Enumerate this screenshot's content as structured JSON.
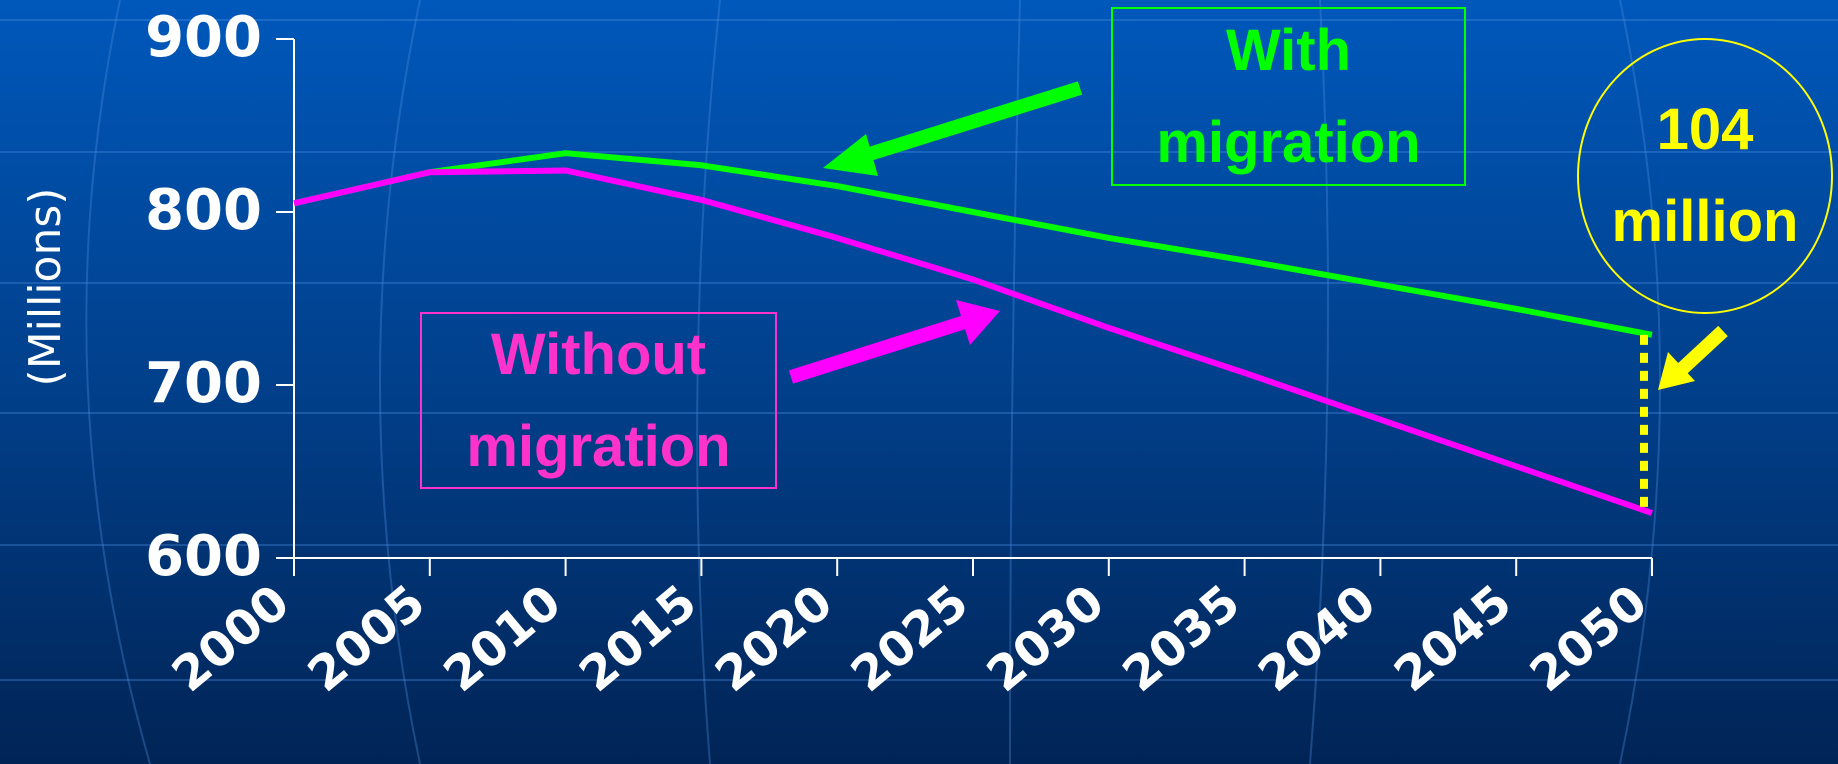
{
  "chart_data": {
    "type": "line",
    "y_label": "(Millions)",
    "x": [
      2000,
      2005,
      2010,
      2015,
      2020,
      2025,
      2030,
      2035,
      2040,
      2045,
      2050
    ],
    "series": [
      {
        "name": "With migration",
        "color": "#00ff00",
        "values": [
          805,
          823,
          834,
          827,
          815,
          800,
          785,
          772,
          758,
          744,
          729
        ]
      },
      {
        "name": "Without migration",
        "color": "#ff33cc",
        "line_color": "#ff00ff",
        "values": [
          805,
          823,
          824,
          807,
          785,
          761,
          733,
          707,
          680,
          653,
          626
        ]
      }
    ],
    "annotation": "104 million",
    "annotation_color": "#ffff00",
    "xlim": [
      2000,
      2050
    ],
    "xticks": [
      2000,
      2005,
      2010,
      2015,
      2020,
      2025,
      2030,
      2035,
      2040,
      2045,
      2050
    ],
    "ylim": [
      600,
      900
    ],
    "yticks": [
      600,
      700,
      800,
      900
    ]
  }
}
